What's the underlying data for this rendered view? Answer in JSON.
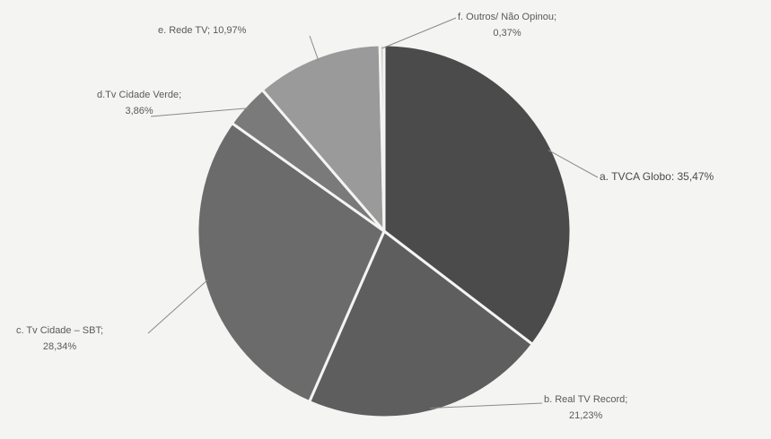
{
  "chart_data": {
    "type": "pie",
    "title": "",
    "slices": [
      {
        "label": "a. TVCA Globo",
        "value": 35.47,
        "display": "35,47%",
        "color": "#4b4b4b"
      },
      {
        "label": "b. Real TV Record",
        "value": 21.23,
        "display": "21,23%",
        "color": "#5e5e5e"
      },
      {
        "label": "c. Tv Cidade – SBT",
        "value": 28.34,
        "display": "28,34%",
        "color": "#6b6b6b"
      },
      {
        "label": "d.Tv Cidade Verde",
        "value": 3.86,
        "display": "3,86%",
        "color": "#7a7a7a"
      },
      {
        "label": "e. Rede TV",
        "value": 10.97,
        "display": "10,97%",
        "color": "#9a9a9a"
      },
      {
        "label": "f. Outros/ Não Opinou",
        "value": 0.37,
        "display": "0,37%",
        "color": "#cfcfcf"
      }
    ],
    "data_labels": {
      "a": {
        "line1": "a. TVCA Globo: 35,47%"
      },
      "b": {
        "line1": "b. Real TV Record;",
        "line2": "21,23%"
      },
      "c": {
        "line1": "c. Tv Cidade – SBT;",
        "line2": "28,34%"
      },
      "d": {
        "line1": "d.Tv Cidade Verde;",
        "line2": "3,86%"
      },
      "e": {
        "line1": "e. Rede TV; 10,97%"
      },
      "f": {
        "line1": "f. Outros/ Não Opinou;",
        "line2": "0,37%"
      }
    }
  }
}
